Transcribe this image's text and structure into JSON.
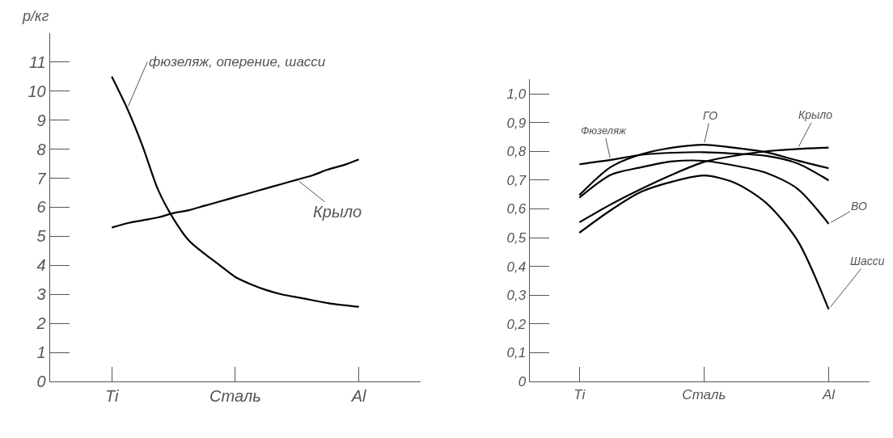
{
  "chart_data": [
    {
      "type": "line",
      "ylabel": "p/кг",
      "categories": [
        "Ti",
        null,
        null,
        null,
        null,
        null,
        null,
        null,
        "Сталь",
        null,
        null,
        null,
        null,
        null,
        null,
        null,
        "Al"
      ],
      "ylim": [
        0,
        12
      ],
      "yticks": [
        0,
        1,
        2,
        3,
        4,
        5,
        6,
        7,
        8,
        9,
        10,
        11
      ],
      "series": [
        {
          "name": "фюзеляж, оперение, шасси",
          "color": "#000000",
          "values": [
            10.5,
            9.4,
            8.1,
            6.6,
            5.6,
            4.85,
            4.4,
            4.0,
            3.6,
            3.35,
            3.15,
            3.0,
            2.9,
            2.8,
            2.7,
            2.63,
            2.57
          ]
        },
        {
          "name": "Крыло",
          "color": "#000000",
          "values": [
            5.3,
            5.45,
            5.55,
            5.65,
            5.8,
            5.9,
            6.05,
            6.2,
            6.35,
            6.5,
            6.65,
            6.8,
            6.95,
            7.1,
            7.3,
            7.45,
            7.65
          ]
        }
      ]
    },
    {
      "type": "line",
      "categories": [
        "Ti",
        null,
        null,
        null,
        "Сталь",
        null,
        null,
        null,
        "Al"
      ],
      "ylim": [
        0,
        1.05
      ],
      "yticks": [
        0,
        {
          "value": 0.1,
          "label": "0,1"
        },
        {
          "value": 0.2,
          "label": "0,2"
        },
        {
          "value": 0.3,
          "label": "0,3"
        },
        {
          "value": 0.4,
          "label": "0,4"
        },
        {
          "value": 0.5,
          "label": "0,5"
        },
        {
          "value": 0.6,
          "label": "0,6"
        },
        {
          "value": 0.7,
          "label": "0,7"
        },
        {
          "value": 0.8,
          "label": "0,8"
        },
        {
          "value": 0.9,
          "label": "0,9"
        },
        {
          "value": 1.0,
          "label": "1,0"
        }
      ],
      "series": [
        {
          "name": "Фюзеляж",
          "color": "#000000",
          "values": [
            0.755,
            0.77,
            0.788,
            0.795,
            0.797,
            0.792,
            0.784,
            0.758,
            0.699
          ]
        },
        {
          "name": "ГО",
          "color": "#000000",
          "values": [
            0.648,
            0.745,
            0.79,
            0.813,
            0.823,
            0.812,
            0.797,
            0.768,
            0.741
          ]
        },
        {
          "name": "Крыло",
          "color": "#000000",
          "values": [
            0.553,
            0.615,
            0.67,
            0.72,
            0.763,
            0.785,
            0.8,
            0.808,
            0.813
          ]
        },
        {
          "name": "ВО",
          "color": "#000000",
          "values": [
            0.639,
            0.718,
            0.745,
            0.765,
            0.767,
            0.75,
            0.725,
            0.67,
            0.548
          ]
        },
        {
          "name": "Шасси",
          "color": "#000000",
          "values": [
            0.517,
            0.595,
            0.66,
            0.695,
            0.716,
            0.69,
            0.62,
            0.49,
            0.251
          ]
        }
      ]
    }
  ]
}
